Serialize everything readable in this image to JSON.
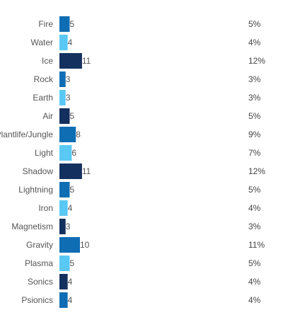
{
  "chart_data": {
    "type": "bar",
    "orientation": "horizontal",
    "categories": [
      "Fire",
      "Water",
      "Ice",
      "Rock",
      "Earth",
      "Air",
      "Plantlife/Jungle",
      "Light",
      "Shadow",
      "Lightning",
      "Iron",
      "Magnetism",
      "Gravity",
      "Plasma",
      "Sonics",
      "Psionics"
    ],
    "values": [
      5,
      4,
      11,
      3,
      3,
      5,
      8,
      6,
      11,
      5,
      4,
      3,
      10,
      5,
      4,
      4
    ],
    "percentages": [
      "5%",
      "4%",
      "12%",
      "3%",
      "3%",
      "5%",
      "9%",
      "7%",
      "12%",
      "5%",
      "4%",
      "3%",
      "11%",
      "5%",
      "4%",
      "4%"
    ],
    "title": "",
    "xlabel": "",
    "ylabel": "",
    "grid": false,
    "legend": "none",
    "colors": {
      "dark_navy": "#14305e",
      "medium_blue": "#0f6db4",
      "light_blue": "#5ac8f4",
      "label_text": "#555555"
    },
    "color_cycle": [
      "medium_blue",
      "light_blue",
      "dark_navy"
    ]
  }
}
